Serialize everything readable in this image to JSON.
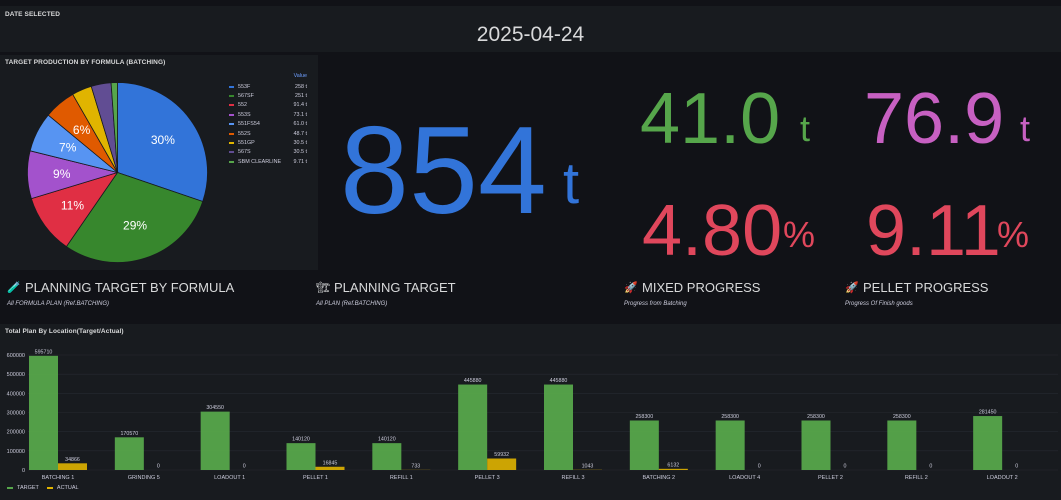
{
  "date_panel": {
    "title": "DATE SELECTED",
    "value": "2025-04-24"
  },
  "pie_panel": {
    "title": "TARGET PRODUCTION BY FORMULA (BATCHING)",
    "legend_header": "Value",
    "slice_labels": [
      "30%",
      "29%",
      "11%",
      "9%",
      "7%",
      "6%"
    ]
  },
  "stats": {
    "total": {
      "value": "854",
      "unit": "t",
      "color": "#3274d9"
    },
    "mixed": {
      "value": "41.0",
      "unit": "t",
      "color": "#56a64b"
    },
    "pellet": {
      "value": "76.9",
      "unit": "t",
      "color": "#c760c2"
    },
    "mixed_pct": {
      "value": "4.80",
      "unit": "%",
      "color": "#e0475c"
    },
    "pellet_pct": {
      "value": "9.11",
      "unit": "%",
      "color": "#e0475c"
    }
  },
  "sections": [
    {
      "icon": "test-tube-icon",
      "glyph": "🧪",
      "title": "PLANNING TARGET BY FORMULA",
      "desc": "All FORMULA PLAN (Ref.BATCHING)"
    },
    {
      "icon": "construction-icon",
      "glyph": "🏗",
      "title": "PLANNING TARGET",
      "desc": "All PLAN (Ref.BATCHING)"
    },
    {
      "icon": "rocket-icon",
      "glyph": "🚀",
      "title": "MIXED PROGRESS",
      "desc": "Progress from Batching"
    },
    {
      "icon": "rocket-icon",
      "glyph": "🚀",
      "title": "PELLET PROGRESS",
      "desc": "Progress Of Finish goods"
    }
  ],
  "bar_panel": {
    "title": "Total Plan By Location(Target/Actual)"
  },
  "colors": {
    "target": "#56a64b",
    "actual": "#e0b400",
    "background": "#111217",
    "panel": "#181b1f"
  },
  "chart_data": [
    {
      "type": "pie",
      "title": "TARGET PRODUCTION BY FORMULA (BATCHING)",
      "legend_placement": "right",
      "slices": [
        {
          "name": "553F",
          "value": 258,
          "display": "258 t",
          "color": "#3274d9"
        },
        {
          "name": "567SF",
          "value": 251,
          "display": "251 t",
          "color": "#37872d"
        },
        {
          "name": "552",
          "value": 91.4,
          "display": "91.4 t",
          "color": "#e02f44"
        },
        {
          "name": "553S",
          "value": 73.1,
          "display": "73.1 t",
          "color": "#a352cc"
        },
        {
          "name": "551FS54",
          "value": 61.0,
          "display": "61.0 t",
          "color": "#5794f2"
        },
        {
          "name": "552S",
          "value": 48.7,
          "display": "48.7 t",
          "color": "#e05a00"
        },
        {
          "name": "551GP",
          "value": 30.5,
          "display": "30.5 t",
          "color": "#e0b400"
        },
        {
          "name": "567S",
          "value": 30.5,
          "display": "30.5 t",
          "color": "#614d93"
        },
        {
          "name": "SBM CLEARLINE",
          "value": 9.71,
          "display": "9.71 t",
          "color": "#56a64b"
        }
      ]
    },
    {
      "type": "bar",
      "title": "Total Plan By Location(Target/Actual)",
      "categories": [
        "BATCHING 1",
        "GRINDING 5",
        "LOADOUT 1",
        "PELLET 1",
        "REFILL 1",
        "PELLET 3",
        "REFILL 3",
        "BATCHING 2",
        "LOADOUT 4",
        "PELLET 2",
        "REFILL 2",
        "LOADOUT 2"
      ],
      "series": [
        {
          "name": "TARGET",
          "color": "#56a64b",
          "values": [
            595710,
            170570,
            304550,
            140120,
            140120,
            445880,
            445880,
            258300,
            258300,
            258300,
            258300,
            281450
          ]
        },
        {
          "name": "ACTUAL",
          "color": "#e0b400",
          "values": [
            34866,
            0,
            0,
            16845,
            733,
            59932,
            1043,
            6132,
            0,
            0,
            0,
            0
          ]
        }
      ],
      "ylim": [
        0,
        600000
      ],
      "yticks": [
        "0",
        "100000",
        "200000",
        "300000",
        "400000",
        "500000",
        "600000"
      ],
      "legend_placement": "bottom-left"
    }
  ]
}
